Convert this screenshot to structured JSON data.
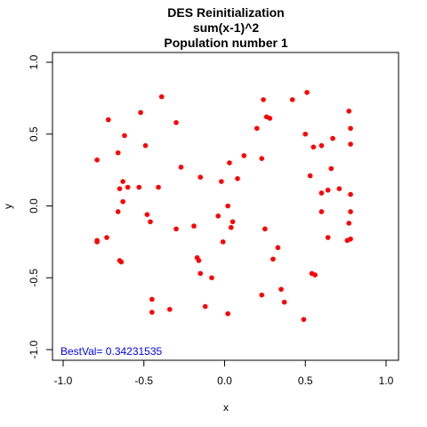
{
  "chart_data": {
    "type": "scatter",
    "title": "DES Reinitialization",
    "subtitle": "sum(x-1)^2",
    "subtitle2": "Population number 1",
    "xlabel": "x",
    "ylabel": "y",
    "xlim": [
      -1.0,
      1.0
    ],
    "ylim": [
      -1.0,
      1.0
    ],
    "xticks": [
      "-1.0",
      "-0.5",
      "0.0",
      "0.5",
      "1.0"
    ],
    "yticks": [
      "-1.0",
      "-0.5",
      "0.0",
      "0.5",
      "1.0"
    ],
    "grid": false,
    "point_color": "#ff0000",
    "annotation": {
      "text": "BestVal= 0.34231535",
      "color": "#0000ff",
      "position": "bottom-left"
    },
    "points": [
      [
        -0.39,
        0.76
      ],
      [
        -0.52,
        0.65
      ],
      [
        -0.72,
        0.6
      ],
      [
        -0.3,
        0.58
      ],
      [
        -0.62,
        0.49
      ],
      [
        -0.49,
        0.42
      ],
      [
        -0.66,
        0.37
      ],
      [
        -0.27,
        0.27
      ],
      [
        -0.63,
        0.17
      ],
      [
        -0.6,
        0.13
      ],
      [
        -0.65,
        0.12
      ],
      [
        -0.53,
        0.13
      ],
      [
        -0.41,
        0.13
      ],
      [
        -0.79,
        0.32
      ],
      [
        -0.63,
        0.03
      ],
      [
        -0.66,
        -0.04
      ],
      [
        -0.48,
        -0.06
      ],
      [
        -0.46,
        -0.11
      ],
      [
        -0.73,
        -0.22
      ],
      [
        -0.79,
        -0.24
      ],
      [
        -0.79,
        -0.25
      ],
      [
        -0.65,
        -0.38
      ],
      [
        -0.64,
        -0.39
      ],
      [
        -0.3,
        -0.16
      ],
      [
        -0.19,
        -0.14
      ],
      [
        -0.15,
        0.2
      ],
      [
        -0.02,
        0.17
      ],
      [
        0.03,
        0.3
      ],
      [
        0.08,
        0.19
      ],
      [
        0.12,
        0.35
      ],
      [
        0.2,
        0.54
      ],
      [
        0.24,
        0.74
      ],
      [
        0.26,
        0.62
      ],
      [
        0.28,
        0.61
      ],
      [
        0.42,
        0.74
      ],
      [
        0.51,
        0.79
      ],
      [
        0.23,
        0.33
      ],
      [
        0.5,
        0.5
      ],
      [
        0.55,
        0.41
      ],
      [
        0.53,
        0.21
      ],
      [
        0.6,
        0.42
      ],
      [
        0.67,
        0.47
      ],
      [
        0.66,
        0.26
      ],
      [
        0.6,
        0.09
      ],
      [
        0.64,
        0.11
      ],
      [
        0.71,
        0.12
      ],
      [
        0.78,
        0.08
      ],
      [
        0.77,
        0.66
      ],
      [
        0.78,
        0.54
      ],
      [
        0.78,
        0.43
      ],
      [
        0.6,
        -0.04
      ],
      [
        0.78,
        -0.04
      ],
      [
        0.77,
        -0.12
      ],
      [
        0.64,
        -0.22
      ],
      [
        0.78,
        -0.23
      ],
      [
        0.76,
        -0.24
      ],
      [
        0.02,
        0.0
      ],
      [
        0.05,
        -0.11
      ],
      [
        0.04,
        -0.15
      ],
      [
        -0.04,
        -0.07
      ],
      [
        -0.01,
        -0.25
      ],
      [
        0.25,
        -0.16
      ],
      [
        0.33,
        -0.29
      ],
      [
        0.3,
        -0.37
      ],
      [
        -0.17,
        -0.36
      ],
      [
        -0.16,
        -0.38
      ],
      [
        -0.15,
        -0.47
      ],
      [
        -0.08,
        -0.5
      ],
      [
        0.23,
        -0.62
      ],
      [
        0.35,
        -0.58
      ],
      [
        0.37,
        -0.67
      ],
      [
        0.54,
        -0.47
      ],
      [
        0.56,
        -0.48
      ],
      [
        -0.45,
        -0.65
      ],
      [
        -0.45,
        -0.74
      ],
      [
        -0.34,
        -0.72
      ],
      [
        -0.12,
        -0.7
      ],
      [
        0.02,
        -0.75
      ],
      [
        0.49,
        -0.79
      ]
    ]
  }
}
